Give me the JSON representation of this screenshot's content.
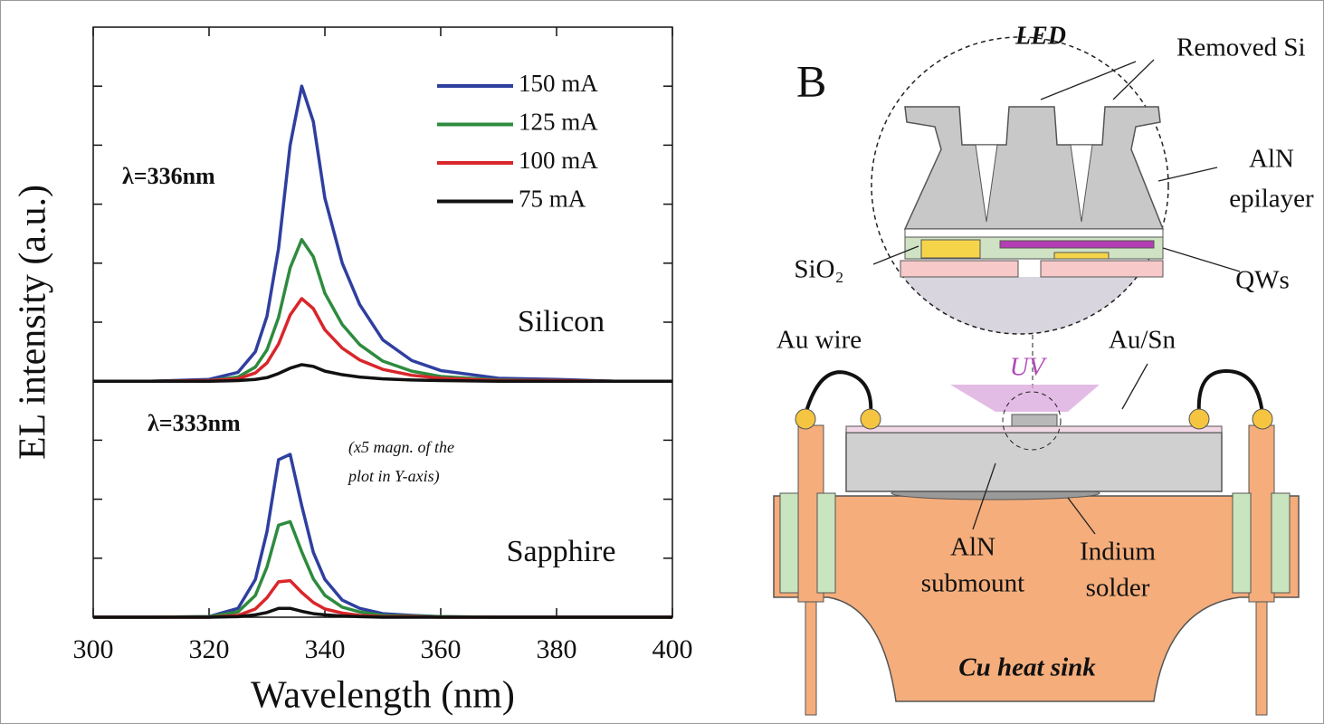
{
  "chart_data": {
    "type": "line",
    "x_label": "Wavelength (nm)",
    "y_label": "EL intensity (a.u.)",
    "x": [
      300,
      310,
      320,
      325,
      328,
      330,
      332,
      334,
      336,
      338,
      340,
      343,
      346,
      350,
      355,
      360,
      370,
      380,
      390,
      400
    ],
    "xlim": [
      300,
      400
    ],
    "xticks": [
      300,
      320,
      340,
      360,
      380,
      400
    ],
    "ylim": [
      0,
      10
    ],
    "yticks": [
      1,
      2,
      3,
      4,
      5,
      6,
      7,
      8,
      9
    ],
    "series": [
      {
        "name": "150 mA",
        "color": "#2f3f9f",
        "values": [
          4,
          4,
          4.03,
          4.15,
          4.5,
          5.1,
          6.25,
          8,
          9,
          8.4,
          7.1,
          6,
          5.3,
          4.7,
          4.35,
          4.18,
          4.05,
          4.03,
          4,
          4
        ],
        "sapphire_values": [
          0,
          0,
          0.01,
          0.15,
          0.64,
          1.45,
          2.67,
          2.76,
          1.89,
          1.1,
          0.64,
          0.29,
          0.15,
          0.06,
          0.03,
          0.01,
          0,
          0,
          0,
          0
        ]
      },
      {
        "name": "125 mA",
        "color": "#2e8b3e",
        "values": [
          4,
          4,
          4.01,
          4.07,
          4.24,
          4.53,
          5.08,
          5.92,
          6.4,
          6.11,
          5.49,
          4.96,
          4.62,
          4.34,
          4.17,
          4.08,
          4.02,
          4.01,
          4,
          4
        ],
        "sapphire_values": [
          0,
          0,
          0.01,
          0.09,
          0.37,
          0.85,
          1.56,
          1.62,
          1.11,
          0.65,
          0.37,
          0.17,
          0.09,
          0.03,
          0.02,
          0.01,
          0,
          0,
          0,
          0
        ]
      },
      {
        "name": "100 mA",
        "color": "#d9262b",
        "values": [
          4,
          4,
          4.01,
          4.04,
          4.14,
          4.31,
          4.63,
          5.12,
          5.4,
          5.23,
          4.87,
          4.56,
          4.36,
          4.2,
          4.1,
          4.05,
          4.01,
          4.01,
          4,
          4
        ],
        "sapphire_values": [
          0,
          0,
          0,
          0.03,
          0.14,
          0.33,
          0.6,
          0.62,
          0.42,
          0.25,
          0.14,
          0.07,
          0.03,
          0.01,
          0.01,
          0,
          0,
          0,
          0,
          0
        ]
      },
      {
        "name": "75 mA",
        "color": "#111111",
        "values": [
          4,
          4,
          4,
          4.01,
          4.03,
          4.06,
          4.13,
          4.22,
          4.28,
          4.25,
          4.17,
          4.11,
          4.07,
          4.04,
          4.02,
          4.01,
          4,
          4,
          4,
          4
        ],
        "sapphire_values": [
          0,
          0,
          0,
          0.01,
          0.04,
          0.08,
          0.15,
          0.15,
          0.1,
          0.06,
          0.04,
          0.02,
          0.01,
          0,
          0,
          0,
          0,
          0,
          0,
          0
        ]
      }
    ],
    "annotations": {
      "silicon_peak": "λ=336nm",
      "silicon": "Silicon",
      "sapphire_peak": "λ=333nm",
      "sapphire_note": [
        "(x5 magn. of the",
        "plot in Y-axis)"
      ],
      "sapphire": "Sapphire"
    }
  },
  "diagram": {
    "panel_label": "B",
    "led": "LED",
    "removed_si": "Removed Si",
    "aln_epilayer": [
      "AlN",
      "epilayer"
    ],
    "sio2": "SiO₂",
    "qws": "QWs",
    "au_wire": "Au wire",
    "au_sn": "Au/Sn",
    "uv": "UV",
    "aln_submount": [
      "AlN",
      "submount"
    ],
    "indium_solder": [
      "Indium",
      "solder"
    ],
    "cu_heat_sink": "Cu heat sink"
  }
}
